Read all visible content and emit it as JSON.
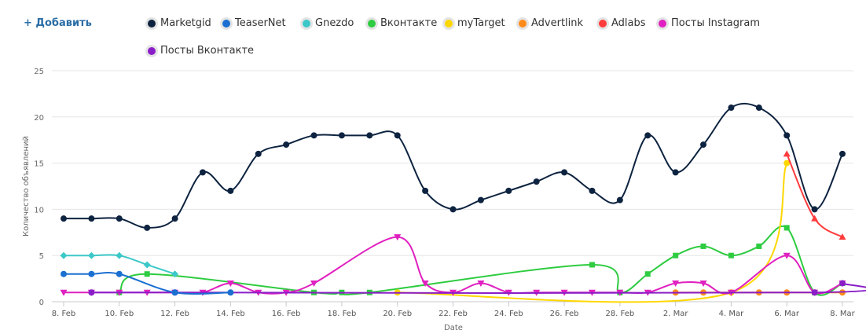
{
  "add_button": "+ Добавить",
  "chart_data": {
    "type": "line",
    "xlabel": "Date",
    "ylabel": "Количество объявлений",
    "ylim": [
      0,
      25
    ],
    "yticks": [
      0,
      5,
      10,
      15,
      20,
      25
    ],
    "grid": true,
    "legend_position": "top",
    "x_tick_labels": [
      "8. Feb",
      "10. Feb",
      "12. Feb",
      "14. Feb",
      "16. Feb",
      "18. Feb",
      "20. Feb",
      "22. Feb",
      "24. Feb",
      "26. Feb",
      "28. Feb",
      "2. Mar",
      "4. Mar",
      "6. Mar",
      "8. Mar"
    ],
    "series": [
      {
        "name": "Marketgid",
        "color": "#0d2340",
        "marker": "circle",
        "values": [
          9,
          9,
          9,
          8,
          9,
          14,
          12,
          16,
          17,
          18,
          18,
          18,
          18,
          12,
          10,
          11,
          12,
          13,
          14,
          12,
          11,
          18,
          14,
          17,
          21,
          21,
          18,
          10,
          16
        ]
      },
      {
        "name": "TeaserNet",
        "color": "#1a6fd1",
        "marker": "circle",
        "values": [
          3,
          3,
          3,
          null,
          1,
          null,
          1,
          null,
          null,
          null,
          null,
          null,
          null,
          null,
          null,
          null,
          null,
          null,
          null,
          null,
          null,
          null,
          null,
          null,
          null,
          null,
          null,
          null,
          null
        ]
      },
      {
        "name": "Gnezdo",
        "color": "#3cc8c8",
        "marker": "diamond",
        "values": [
          5,
          5,
          5,
          4,
          3,
          null,
          null,
          null,
          null,
          null,
          null,
          null,
          null,
          null,
          null,
          null,
          null,
          null,
          null,
          null,
          null,
          null,
          null,
          null,
          null,
          null,
          null,
          null,
          null
        ]
      },
      {
        "name": "Вконтакте",
        "color": "#2ecc40",
        "marker": "square",
        "values": [
          null,
          null,
          1,
          3,
          null,
          null,
          null,
          null,
          null,
          1,
          1,
          1,
          null,
          null,
          null,
          null,
          null,
          null,
          null,
          4,
          1,
          3,
          5,
          6,
          5,
          6,
          8,
          1,
          2
        ]
      },
      {
        "name": "myTarget",
        "color": "#ffd700",
        "marker": "circle",
        "values": [
          null,
          null,
          null,
          null,
          null,
          null,
          null,
          null,
          null,
          null,
          null,
          null,
          1,
          null,
          null,
          null,
          null,
          null,
          null,
          null,
          null,
          null,
          null,
          null,
          1,
          null,
          15,
          null,
          null
        ]
      },
      {
        "name": "Advertlink",
        "color": "#ff8c1a",
        "marker": "circle",
        "values": [
          null,
          null,
          null,
          null,
          null,
          null,
          null,
          null,
          null,
          null,
          null,
          null,
          null,
          null,
          null,
          null,
          null,
          null,
          null,
          null,
          null,
          null,
          1,
          1,
          1,
          1,
          1,
          1,
          1
        ]
      },
      {
        "name": "Adlabs",
        "color": "#ff3b3b",
        "marker": "triangle",
        "values": [
          null,
          null,
          null,
          null,
          null,
          null,
          null,
          null,
          null,
          null,
          null,
          null,
          null,
          null,
          null,
          null,
          null,
          null,
          null,
          null,
          null,
          null,
          null,
          null,
          null,
          null,
          16,
          9,
          7
        ]
      },
      {
        "name": "Посты Instagram",
        "color": "#e020c0",
        "marker": "triangle-down",
        "values": [
          1,
          1,
          1,
          1,
          1,
          1,
          2,
          1,
          1,
          2,
          null,
          null,
          7,
          2,
          1,
          2,
          1,
          1,
          1,
          1,
          1,
          1,
          2,
          2,
          1,
          null,
          5,
          1,
          2
        ]
      },
      {
        "name": "Посты Вконтакте",
        "color": "#8a1ec8",
        "marker": "circle",
        "values": [
          null,
          1,
          null,
          null,
          1,
          null,
          null,
          null,
          null,
          null,
          null,
          null,
          null,
          null,
          null,
          null,
          null,
          null,
          null,
          null,
          null,
          null,
          null,
          null,
          null,
          null,
          null,
          1,
          2
        ]
      }
    ]
  }
}
